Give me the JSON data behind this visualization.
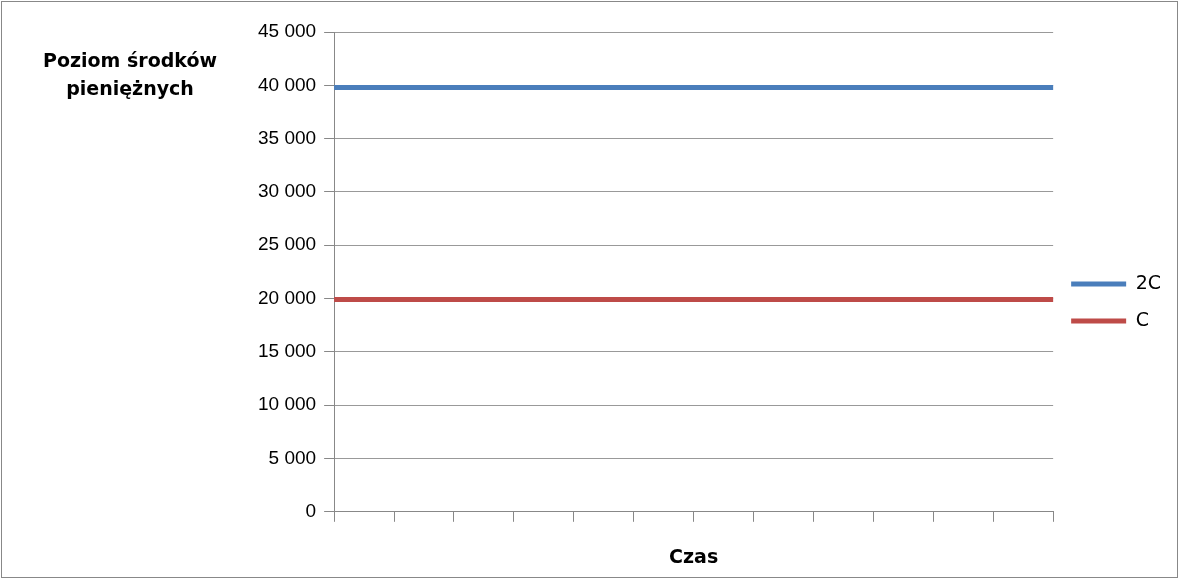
{
  "chart_data": {
    "type": "line",
    "xlabel": "Czas",
    "ylabel": "Poziom środków pieniężnych",
    "categories": [
      null,
      null,
      null,
      null,
      null,
      null,
      null,
      null,
      null,
      null,
      null,
      null,
      null
    ],
    "series": [
      {
        "name": "2C",
        "color": "#4a7ebb",
        "values": [
          39800,
          39800,
          39800,
          39800,
          39800,
          39800,
          39800,
          39800,
          39800,
          39800,
          39800,
          39800,
          39800
        ]
      },
      {
        "name": "C",
        "color": "#be4b48",
        "values": [
          19900,
          19900,
          19900,
          19900,
          19900,
          19900,
          19900,
          19900,
          19900,
          19900,
          19900,
          19900,
          19900
        ]
      }
    ],
    "ylim": [
      0,
      45000
    ],
    "yticks": [
      0,
      5000,
      10000,
      15000,
      20000,
      25000,
      30000,
      35000,
      40000,
      45000
    ],
    "grid": "y",
    "legend": "right",
    "marker": "none",
    "line_style": "solid"
  }
}
